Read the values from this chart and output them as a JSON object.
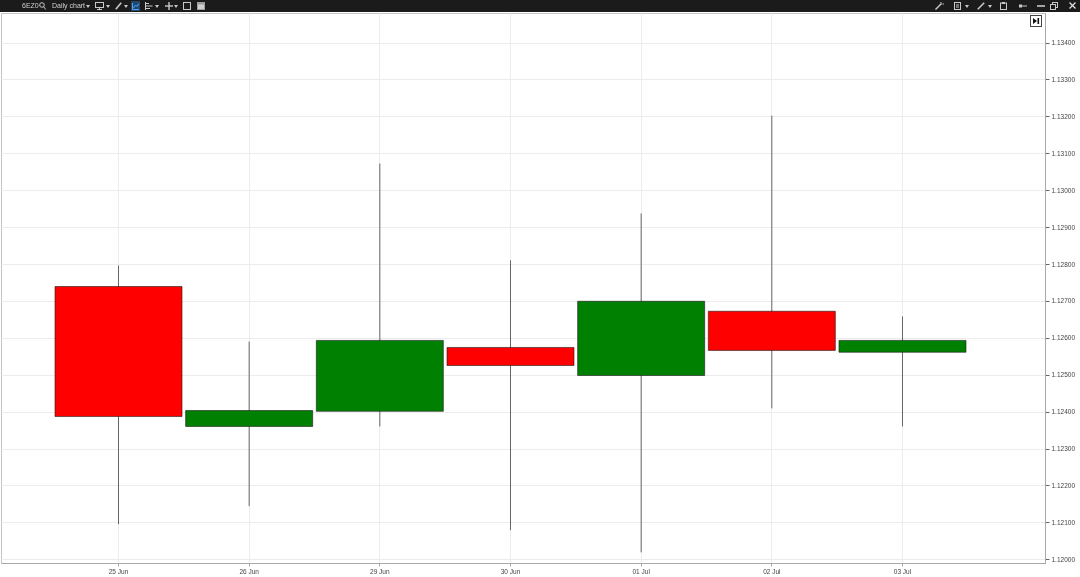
{
  "chart_data": {
    "type": "candlestick",
    "title": "6EZ0",
    "subtitle": "Daily chart",
    "categories": [
      "25 Jun",
      "26 Jun",
      "29 Jun",
      "30 Jun",
      "01 Jul",
      "02 Jul",
      "03 Jul"
    ],
    "ohlc": [
      [
        1.12739,
        1.12796,
        1.12095,
        1.12387
      ],
      [
        1.1236,
        1.1259,
        1.12144,
        1.12403
      ],
      [
        1.12401,
        1.13072,
        1.1236,
        1.12593
      ],
      [
        1.12574,
        1.1281,
        1.12079,
        1.12525
      ],
      [
        1.12498,
        1.12937,
        1.12019,
        1.12699
      ],
      [
        1.12672,
        1.13202,
        1.12409,
        1.12566
      ],
      [
        1.12561,
        1.12658,
        1.1236,
        1.12593
      ]
    ],
    "colors": [
      "#ff0000",
      "#008000",
      "#008000",
      "#ff0000",
      "#008000",
      "#ff0000",
      "#008000"
    ],
    "ylim": [
      1.1199,
      1.1348
    ],
    "yticks": [
      {
        "value": 1.12,
        "label": "1.12000"
      },
      {
        "value": 1.121,
        "label": "1.12100"
      },
      {
        "value": 1.122,
        "label": "1.12200"
      },
      {
        "value": 1.123,
        "label": "1.12300"
      },
      {
        "value": 1.124,
        "label": "1.12400"
      },
      {
        "value": 1.125,
        "label": "1.12500"
      },
      {
        "value": 1.126,
        "label": "1.12600"
      },
      {
        "value": 1.127,
        "label": "1.12700"
      },
      {
        "value": 1.128,
        "label": "1.12800"
      },
      {
        "value": 1.129,
        "label": "1.12900"
      },
      {
        "value": 1.13,
        "label": "1.13000"
      },
      {
        "value": 1.131,
        "label": "1.13100"
      },
      {
        "value": 1.132,
        "label": "1.13200"
      },
      {
        "value": 1.133,
        "label": "1.13300"
      },
      {
        "value": 1.134,
        "label": "1.13400"
      }
    ],
    "grid": true
  }
}
